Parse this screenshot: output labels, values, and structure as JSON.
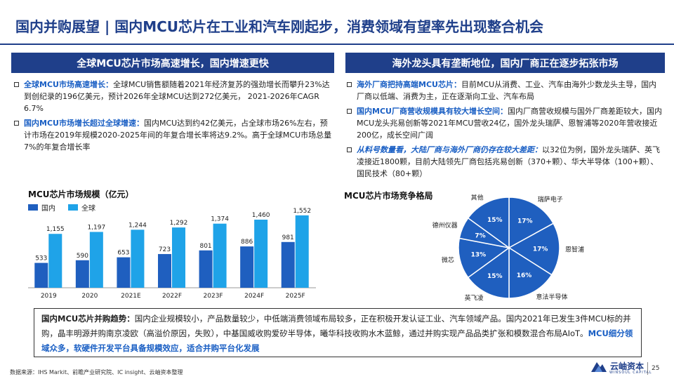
{
  "title": "国内并购展望 | 国内MCU芯片在工业和汽车刚起步，消费领域有望率先出现整合机会",
  "left_panel": {
    "header": "全球MCU芯片市场高速增长，国内增速更快",
    "bullets": [
      {
        "lead": "全球MCU市场高速增长：",
        "text": "全球MCU销售额随着2021年经济复苏的强劲增长而攀升23%达到创纪录的196亿美元，预计2026年全球MCU达到272亿美元， 2021-2026年CAGR 6.7%"
      },
      {
        "lead": "国内MCU市场增长超过全球增速：",
        "text": "国内MCU达到约42亿美元，占全球市场26%左右，预计市场在2019年规模2020-2025年间的年复合增长率将达9.2%。高于全球MCU市场总量7%的年复合增长率"
      }
    ]
  },
  "right_panel": {
    "header": "海外龙头具有垄断地位，国内厂商正在逐步拓张市场",
    "bullets": [
      {
        "lead": "海外厂商把持高端MCU芯片：",
        "text": "目前MCU从消费、工业、汽车由海外少数龙头主导，国内厂商以低端、消费为主，正在逐渐向工业、汽车布局",
        "italic": false
      },
      {
        "lead": "国内MCU厂商营收规模具有较大增长空间：",
        "text": "国内厂商营收规模与国外厂商差距较大，国内MCU龙头兆易创新等2021年MCU营收24亿，国外龙头瑞萨、恩智浦等2020年营收接近200亿，成长空间广阔",
        "italic": false
      },
      {
        "lead": "从料号数量看，大陆厂商与海外厂商仍存在较大差距：",
        "text": "以32位为例，国外龙头瑞萨、英飞凌接近1800颗，目前大陆领先厂商包括兆易创新（370+颗）、华大半导体（100+颗）、国民技术（80+颗）",
        "italic": true
      }
    ]
  },
  "chart_data": [
    {
      "type": "bar",
      "title": "MCU芯片市场规模（亿元）",
      "categories": [
        "2019",
        "2020",
        "2021E",
        "2022F",
        "2023F",
        "2024F",
        "2025F"
      ],
      "series": [
        {
          "name": "国内",
          "color": "#1f5fbf",
          "values": [
            533,
            590,
            653,
            723,
            801,
            886,
            981
          ]
        },
        {
          "name": "全球",
          "color": "#1fa3e8",
          "values": [
            1155,
            1197,
            1244,
            1292,
            1374,
            1460,
            1552
          ]
        }
      ],
      "value_labels": [
        "533",
        "590",
        "653",
        "723",
        "801",
        "886",
        "981",
        "1,155",
        "1,197",
        "1,244",
        "1,292",
        "1,374",
        "1,460",
        "1,552"
      ],
      "ylim": [
        0,
        1700
      ],
      "legend": "top-left",
      "grid": false
    },
    {
      "type": "pie",
      "title": "MCU芯片市场竞争格局",
      "labels": [
        "瑞萨电子",
        "恩智浦",
        "意法半导体",
        "英飞凌",
        "微芯",
        "德州仪器",
        "其他"
      ],
      "values": [
        17,
        17,
        16,
        15,
        13,
        7,
        15
      ],
      "value_labels": [
        "17%",
        "17%",
        "16%",
        "15%",
        "13%",
        "7%",
        "15%"
      ],
      "color": "#1f5fbf"
    }
  ],
  "summary": {
    "lead": "国内MCU芯片并购趋势：",
    "text": "国内企业规模较小，产品数量较少，中低端消费领域布局较多，正在积极开发认证工业、汽车领域产品。国内2021年已发生3件MCU标的并购，晶丰明源并购南京凌欧（高溢价原因，失败），中基国威收购爱矽半导体，曦华科技收购水木蓝鲸，通过并购实现产品品类扩张和模数混合布局AIoT。",
    "highlight": "MCU细分领域众多，软硬件开发平台具备规模效应，适合并购平台化发展"
  },
  "footer": {
    "source": "数据来源：IHS Markit、前瞻产业研究院、IC insight、云岫资本整理",
    "logo_text": "云岫资本",
    "logo_sub": "WINSOUL CAPITAL",
    "page": "25"
  }
}
